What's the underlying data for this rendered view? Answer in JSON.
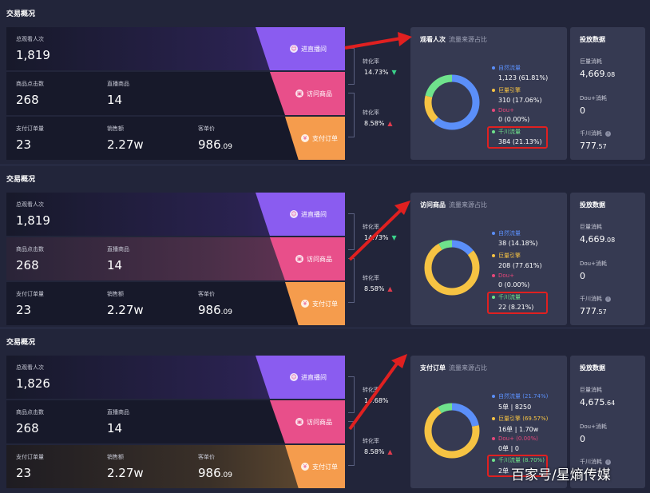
{
  "panels": [
    {
      "section_title": "交易概况",
      "metrics": {
        "viewers_label": "总观看人次",
        "viewers": "1,819",
        "product_clicks_label": "商品点击数",
        "product_clicks": "268",
        "live_products_label": "直播商品",
        "live_products": "14",
        "orders_label": "支付订单量",
        "orders": "23",
        "sales_label": "销售额",
        "sales": "2.27w",
        "aov_label": "客单价",
        "aov_int": "986",
        "aov_dec": ".09"
      },
      "funnel": [
        "进直播间",
        "访问商品",
        "支付订单"
      ],
      "conv1_label": "转化率",
      "conv1": "14.73%",
      "conv1_trend": "down",
      "conv2_label": "转化率",
      "conv2": "8.58%",
      "conv2_trend": "up",
      "card_title": "观看人次",
      "card_subtitle": "流量来源占比",
      "legend": [
        {
          "name": "自然流量",
          "value": "1,123  (61.81%)",
          "color": "#5b8ff9"
        },
        {
          "name": "巨量引擎",
          "value": "310  (17.06%)",
          "color": "#f6c343"
        },
        {
          "name": "Dou+",
          "value": "0  (0.00%)",
          "color": "#e8477a"
        },
        {
          "name": "千川流量",
          "value": "384  (21.13%)",
          "color": "#6fe28c"
        }
      ],
      "donut_shares": [
        61.81,
        17.06,
        0,
        21.13
      ],
      "ad_title": "投放数据",
      "ad": [
        {
          "label": "巨量消耗",
          "int": "4,669",
          "dec": ".08"
        },
        {
          "label": "Dou+消耗",
          "int": "0",
          "dec": ""
        },
        {
          "label": "千川消耗",
          "int": "777",
          "dec": ".57"
        }
      ]
    },
    {
      "section_title": "交易概况",
      "metrics": {
        "viewers_label": "总观看人次",
        "viewers": "1,819",
        "product_clicks_label": "商品点击数",
        "product_clicks": "268",
        "live_products_label": "直播商品",
        "live_products": "14",
        "orders_label": "支付订单量",
        "orders": "23",
        "sales_label": "销售额",
        "sales": "2.27w",
        "aov_label": "客单价",
        "aov_int": "986",
        "aov_dec": ".09"
      },
      "funnel": [
        "进直播间",
        "访问商品",
        "支付订单"
      ],
      "conv1_label": "转化率",
      "conv1": "14.73%",
      "conv1_trend": "down",
      "conv2_label": "转化率",
      "conv2": "8.58%",
      "conv2_trend": "up",
      "card_title": "访问商品",
      "card_subtitle": "流量来源占比",
      "legend": [
        {
          "name": "自然流量",
          "value": "38  (14.18%)",
          "color": "#5b8ff9"
        },
        {
          "name": "巨量引擎",
          "value": "208  (77.61%)",
          "color": "#f6c343"
        },
        {
          "name": "Dou+",
          "value": "0  (0.00%)",
          "color": "#e8477a"
        },
        {
          "name": "千川流量",
          "value": "22  (8.21%)",
          "color": "#6fe28c"
        }
      ],
      "donut_shares": [
        14.18,
        77.61,
        0,
        8.21
      ],
      "ad_title": "投放数据",
      "ad": [
        {
          "label": "巨量消耗",
          "int": "4,669",
          "dec": ".08"
        },
        {
          "label": "Dou+消耗",
          "int": "0",
          "dec": ""
        },
        {
          "label": "千川消耗",
          "int": "777",
          "dec": ".57"
        }
      ]
    },
    {
      "section_title": "交易概况",
      "metrics": {
        "viewers_label": "总观看人次",
        "viewers": "1,826",
        "product_clicks_label": "商品点击数",
        "product_clicks": "268",
        "live_products_label": "直播商品",
        "live_products": "14",
        "orders_label": "支付订单量",
        "orders": "23",
        "sales_label": "销售额",
        "sales": "2.27w",
        "aov_label": "客单价",
        "aov_int": "986",
        "aov_dec": ".09"
      },
      "funnel": [
        "进直播间",
        "访问商品",
        "支付订单"
      ],
      "conv1_label": "转化率",
      "conv1": "14.68%",
      "conv1_trend": "",
      "conv2_label": "转化率",
      "conv2": "8.58%",
      "conv2_trend": "up",
      "card_title": "支付订单",
      "card_subtitle": "流量来源占比",
      "legend": [
        {
          "name": "自然流量  (21.74%)",
          "value": "5单 | 8250",
          "color": "#5b8ff9"
        },
        {
          "name": "巨量引擎  (69.57%)",
          "value": "16单 | 1.70w",
          "color": "#f6c343"
        },
        {
          "name": "Dou+  (0.00%)",
          "value": "0单 | 0",
          "color": "#e8477a"
        },
        {
          "name": "千川流量  (8.70%)",
          "value": "2单",
          "color": "#6fe28c"
        }
      ],
      "donut_shares": [
        21.74,
        69.57,
        0,
        8.7
      ],
      "ad_title": "投放数据",
      "ad": [
        {
          "label": "巨量消耗",
          "int": "4,675",
          "dec": ".64"
        },
        {
          "label": "Dou+消耗",
          "int": "0",
          "dec": ""
        },
        {
          "label": "千川消耗",
          "int": "",
          "dec": ""
        }
      ]
    }
  ],
  "watermark": "百家号/星熵传媒"
}
